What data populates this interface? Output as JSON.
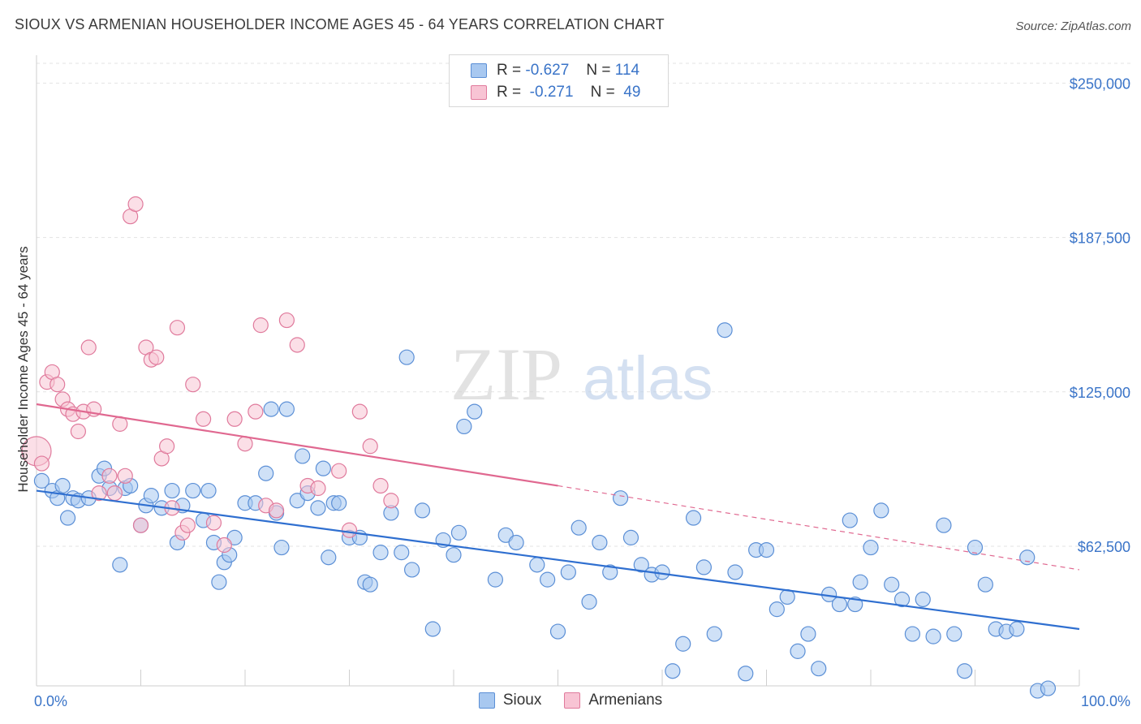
{
  "title": "SIOUX VS ARMENIAN HOUSEHOLDER INCOME AGES 45 - 64 YEARS CORRELATION CHART",
  "source": "Source: ZipAtlas.com",
  "watermark": {
    "zip": "ZIP",
    "atlas": "atlas"
  },
  "legend": {
    "rows": [
      {
        "r_label": "R =",
        "r_value": "-0.627",
        "n_label": "N =",
        "n_value": "114",
        "color": "#a8c8f0",
        "border": "#5b8fd6"
      },
      {
        "r_label": "R =",
        "r_value": "-0.271",
        "n_label": "N =",
        "n_value": "49",
        "color": "#f8c4d4",
        "border": "#e07a9c"
      }
    ]
  },
  "bottom_legend": [
    {
      "label": "Sioux",
      "color": "#a8c8f0",
      "border": "#5b8fd6"
    },
    {
      "label": "Armenians",
      "color": "#f8c4d4",
      "border": "#e07a9c"
    }
  ],
  "chart_data": {
    "type": "scatter",
    "title": "SIOUX VS ARMENIAN HOUSEHOLDER INCOME AGES 45 - 64 YEARS CORRELATION CHART",
    "xlabel": "",
    "ylabel": "Householder Income Ages 45 - 64 years",
    "xlim": [
      0,
      100
    ],
    "ylim": [
      6000,
      258000
    ],
    "x_tick_labels": [
      "0.0%",
      "100.0%"
    ],
    "y_ticks": [
      62500,
      125000,
      187500,
      250000
    ],
    "y_tick_labels": [
      "$62,500",
      "$125,000",
      "$187,500",
      "$250,000"
    ],
    "grid": "horizontal dashed",
    "legend_position": "top-center and bottom",
    "series": [
      {
        "name": "Sioux",
        "color": "#a8c8f0",
        "edge": "#5b8fd6",
        "trend": {
          "x": [
            0,
            100
          ],
          "y": [
            85000,
            29000
          ],
          "color": "#2f6fd0"
        },
        "points": [
          [
            0.5,
            89000
          ],
          [
            1.5,
            85000
          ],
          [
            2,
            82000
          ],
          [
            2.5,
            87000
          ],
          [
            3,
            74000
          ],
          [
            3.5,
            82000
          ],
          [
            4,
            81000
          ],
          [
            5,
            82000
          ],
          [
            6,
            91000
          ],
          [
            6.5,
            94000
          ],
          [
            7,
            86000
          ],
          [
            8,
            55000
          ],
          [
            8.5,
            86000
          ],
          [
            9,
            87000
          ],
          [
            10,
            71000
          ],
          [
            10.5,
            79000
          ],
          [
            11,
            83000
          ],
          [
            12,
            78000
          ],
          [
            13,
            85000
          ],
          [
            13.5,
            64000
          ],
          [
            14,
            79000
          ],
          [
            15,
            85000
          ],
          [
            16,
            73000
          ],
          [
            16.5,
            85000
          ],
          [
            17,
            64000
          ],
          [
            17.5,
            48000
          ],
          [
            18,
            56000
          ],
          [
            18.5,
            59000
          ],
          [
            19,
            66000
          ],
          [
            20,
            80000
          ],
          [
            21,
            80000
          ],
          [
            22,
            92000
          ],
          [
            22.5,
            118000
          ],
          [
            23,
            76000
          ],
          [
            23.5,
            62000
          ],
          [
            24,
            118000
          ],
          [
            25,
            81000
          ],
          [
            25.5,
            99000
          ],
          [
            26,
            84000
          ],
          [
            27,
            78000
          ],
          [
            27.5,
            94000
          ],
          [
            28,
            58000
          ],
          [
            28.5,
            80000
          ],
          [
            29,
            80000
          ],
          [
            30,
            66000
          ],
          [
            31,
            66000
          ],
          [
            31.5,
            48000
          ],
          [
            32,
            47000
          ],
          [
            33,
            60000
          ],
          [
            34,
            76000
          ],
          [
            35,
            60000
          ],
          [
            35.5,
            139000
          ],
          [
            36,
            53000
          ],
          [
            37,
            77000
          ],
          [
            38,
            29000
          ],
          [
            39,
            65000
          ],
          [
            40,
            59000
          ],
          [
            40.5,
            68000
          ],
          [
            41,
            111000
          ],
          [
            42,
            117000
          ],
          [
            44,
            49000
          ],
          [
            45,
            67000
          ],
          [
            46,
            64000
          ],
          [
            48,
            55000
          ],
          [
            49,
            49000
          ],
          [
            50,
            28000
          ],
          [
            51,
            52000
          ],
          [
            52,
            70000
          ],
          [
            53,
            40000
          ],
          [
            54,
            64000
          ],
          [
            55,
            52000
          ],
          [
            56,
            82000
          ],
          [
            57,
            66000
          ],
          [
            58,
            55000
          ],
          [
            59,
            51000
          ],
          [
            60,
            52000
          ],
          [
            61,
            12000
          ],
          [
            62,
            23000
          ],
          [
            63,
            74000
          ],
          [
            64,
            54000
          ],
          [
            65,
            27000
          ],
          [
            66,
            150000
          ],
          [
            67,
            52000
          ],
          [
            68,
            11000
          ],
          [
            69,
            61000
          ],
          [
            70,
            61000
          ],
          [
            71,
            37000
          ],
          [
            72,
            42000
          ],
          [
            73,
            20000
          ],
          [
            74,
            27000
          ],
          [
            75,
            13000
          ],
          [
            76,
            43000
          ],
          [
            77,
            39000
          ],
          [
            78,
            73000
          ],
          [
            78.5,
            39000
          ],
          [
            79,
            48000
          ],
          [
            80,
            62000
          ],
          [
            81,
            77000
          ],
          [
            82,
            47000
          ],
          [
            83,
            41000
          ],
          [
            84,
            27000
          ],
          [
            85,
            41000
          ],
          [
            86,
            26000
          ],
          [
            87,
            71000
          ],
          [
            88,
            27000
          ],
          [
            89,
            12000
          ],
          [
            90,
            62000
          ],
          [
            91,
            47000
          ],
          [
            92,
            29000
          ],
          [
            93,
            28000
          ],
          [
            94,
            29000
          ],
          [
            95,
            58000
          ],
          [
            96,
            4000
          ],
          [
            97,
            5000
          ]
        ]
      },
      {
        "name": "Armenians",
        "color": "#f8c4d4",
        "edge": "#e07a9c",
        "trend": {
          "x": [
            0,
            50,
            100
          ],
          "y": [
            120000,
            87000,
            53000
          ],
          "color": "#e06890",
          "dashed_from": 50
        },
        "points": [
          [
            0,
            101000
          ],
          [
            0.5,
            96000
          ],
          [
            1,
            129000
          ],
          [
            1.5,
            133000
          ],
          [
            2,
            128000
          ],
          [
            2.5,
            122000
          ],
          [
            3,
            118000
          ],
          [
            3.5,
            116000
          ],
          [
            4,
            109000
          ],
          [
            4.5,
            117000
          ],
          [
            5,
            143000
          ],
          [
            5.5,
            118000
          ],
          [
            6,
            84000
          ],
          [
            7,
            91000
          ],
          [
            7.5,
            84000
          ],
          [
            8,
            112000
          ],
          [
            8.5,
            91000
          ],
          [
            9,
            196000
          ],
          [
            9.5,
            201000
          ],
          [
            10,
            71000
          ],
          [
            10.5,
            143000
          ],
          [
            11,
            138000
          ],
          [
            11.5,
            139000
          ],
          [
            12,
            98000
          ],
          [
            12.5,
            103000
          ],
          [
            13,
            78000
          ],
          [
            13.5,
            151000
          ],
          [
            14,
            68000
          ],
          [
            14.5,
            71000
          ],
          [
            15,
            128000
          ],
          [
            16,
            114000
          ],
          [
            17,
            72000
          ],
          [
            18,
            63000
          ],
          [
            19,
            114000
          ],
          [
            20,
            104000
          ],
          [
            21,
            117000
          ],
          [
            21.5,
            152000
          ],
          [
            22,
            79000
          ],
          [
            23,
            77000
          ],
          [
            24,
            154000
          ],
          [
            25,
            144000
          ],
          [
            26,
            87000
          ],
          [
            27,
            86000
          ],
          [
            29,
            93000
          ],
          [
            30,
            69000
          ],
          [
            31,
            117000
          ],
          [
            32,
            103000
          ],
          [
            33,
            87000
          ],
          [
            34,
            81000
          ]
        ]
      }
    ]
  }
}
